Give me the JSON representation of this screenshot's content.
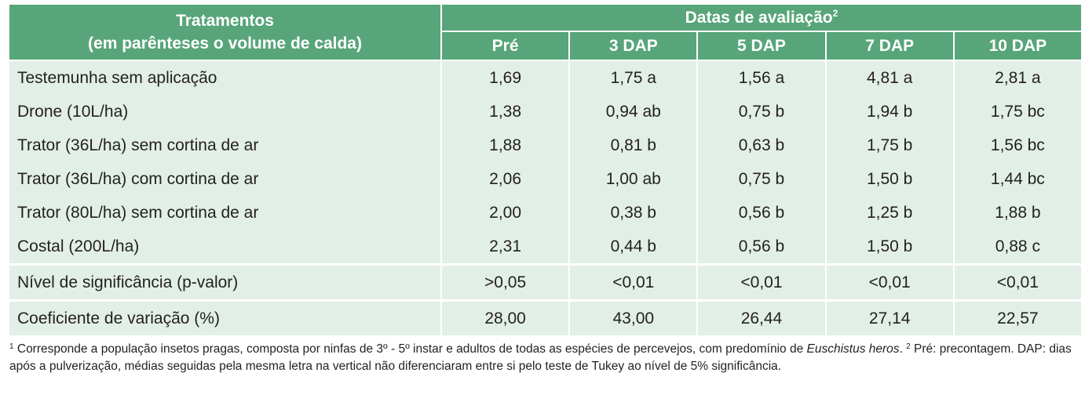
{
  "header": {
    "treatments_line1": "Tratamentos",
    "treatments_line2": "(em parênteses o volume de calda)",
    "dates_label": "Datas de avaliação",
    "dates_sup": "2",
    "columns": [
      "Pré",
      "3 DAP",
      "5 DAP",
      "7 DAP",
      "10 DAP"
    ]
  },
  "rows": [
    {
      "label": "Testemunha sem aplicação",
      "values": [
        "1,69",
        "1,75 a",
        "1,56 a",
        "4,81 a",
        "2,81 a"
      ]
    },
    {
      "label": "Drone (10L/ha)",
      "values": [
        "1,38",
        "0,94 ab",
        "0,75 b",
        "1,94 b",
        "1,75 bc"
      ]
    },
    {
      "label": "Trator (36L/ha) sem cortina de ar",
      "values": [
        "1,88",
        "0,81 b",
        "0,63 b",
        "1,75 b",
        "1,56 bc"
      ]
    },
    {
      "label": "Trator (36L/ha) com cortina de ar",
      "values": [
        "2,06",
        "1,00 ab",
        "0,75 b",
        "1,50 b",
        "1,44 bc"
      ]
    },
    {
      "label": "Trator (80L/ha) sem cortina de ar",
      "values": [
        "2,00",
        "0,38 b",
        "0,56 b",
        "1,25 b",
        "1,88 b"
      ]
    },
    {
      "label": "Costal (200L/ha)",
      "values": [
        "2,31",
        "0,44 b",
        "0,56 b",
        "1,50 b",
        "0,88 c"
      ]
    }
  ],
  "stats": [
    {
      "label": "Nível de significância (p-valor)",
      "values": [
        ">0,05",
        "<0,01",
        "<0,01",
        "<0,01",
        "<0,01"
      ]
    },
    {
      "label": "Coeficiente de variação (%)",
      "values": [
        "28,00",
        "43,00",
        "26,44",
        "27,14",
        "22,57"
      ]
    }
  ],
  "footnote": {
    "sup1": "1",
    "part1": " Corresponde a população insetos pragas, composta por ninfas de 3º - 5º instar e adultos de todas as espécies de percevejos, com predomínio de ",
    "species": "Euschistus heros",
    "part2": ". ",
    "sup2": "2",
    "part3": " Pré: precontagem. DAP: dias após a pulverização, médias seguidas pela mesma letra na vertical não diferenciaram entre si pelo teste de Tukey ao nível de 5% significância."
  },
  "colors": {
    "header_bg": "#58a57a",
    "row_bg": "#e2efe6",
    "text": "#231f20"
  }
}
